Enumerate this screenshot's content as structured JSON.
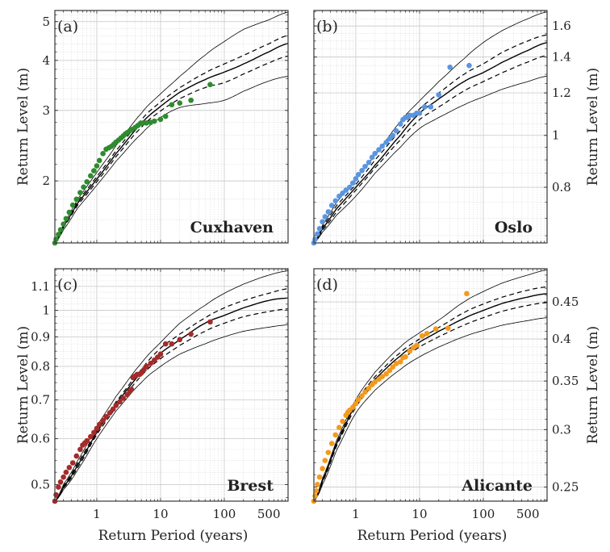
{
  "chart_data": [
    {
      "type": "scatter",
      "panel_label": "(a)",
      "station": "Cuxhaven",
      "xlabel": "",
      "ylabel": "Return Level (m)",
      "ylabel_side": "left",
      "xscale": "log",
      "yscale": "log",
      "xlim": [
        0.22,
        1000
      ],
      "ylim": [
        1.4,
        5.33
      ],
      "xticks": [
        1,
        10,
        100,
        500
      ],
      "xtick_labels_shown": false,
      "yticks": [
        2,
        3,
        4,
        5
      ],
      "ytick_labels": [
        "2",
        "3",
        "4",
        "5"
      ],
      "grid": true,
      "marker_color": "#2e8b2e",
      "curve_T": [
        0.22,
        0.3,
        0.5,
        1,
        2,
        5,
        10,
        20,
        50,
        100,
        200,
        500,
        1000
      ],
      "series": [
        {
          "name": "upper 95% CI",
          "style": "thin-solid",
          "values": [
            1.4,
            1.56,
            1.8,
            2.1,
            2.45,
            2.95,
            3.3,
            3.65,
            4.12,
            4.46,
            4.78,
            5.05,
            5.28
          ]
        },
        {
          "name": "upper 68% CI",
          "style": "dashed",
          "values": [
            1.4,
            1.55,
            1.78,
            2.05,
            2.38,
            2.84,
            3.15,
            3.42,
            3.72,
            3.92,
            4.12,
            4.4,
            4.62
          ]
        },
        {
          "name": "central estimate",
          "style": "solid",
          "values": [
            1.4,
            1.54,
            1.76,
            2.02,
            2.34,
            2.78,
            3.07,
            3.33,
            3.58,
            3.74,
            3.92,
            4.2,
            4.41
          ]
        },
        {
          "name": "lower 68% CI",
          "style": "dashed",
          "values": [
            1.4,
            1.53,
            1.74,
            1.99,
            2.3,
            2.72,
            2.99,
            3.21,
            3.42,
            3.52,
            3.7,
            3.94,
            4.1
          ]
        },
        {
          "name": "lower 95% CI",
          "style": "thin-solid",
          "values": [
            1.4,
            1.51,
            1.71,
            1.95,
            2.24,
            2.62,
            2.88,
            3.05,
            3.12,
            3.18,
            3.35,
            3.55,
            3.65
          ]
        }
      ],
      "points": {
        "x": [
          0.22,
          0.23,
          0.25,
          0.27,
          0.3,
          0.33,
          0.37,
          0.42,
          0.48,
          0.55,
          0.62,
          0.7,
          0.8,
          0.9,
          1.0,
          1.1,
          1.25,
          1.4,
          1.55,
          1.7,
          1.85,
          2.0,
          2.2,
          2.4,
          2.6,
          2.8,
          3.0,
          3.3,
          3.6,
          4.0,
          4.4,
          4.8,
          5.3,
          6.0,
          7.0,
          8.0,
          10.0,
          12.0,
          15.0,
          20.0,
          30.0,
          60.0
        ],
        "y": [
          1.4,
          1.43,
          1.47,
          1.51,
          1.56,
          1.61,
          1.67,
          1.74,
          1.8,
          1.87,
          1.93,
          1.99,
          2.06,
          2.12,
          2.18,
          2.25,
          2.34,
          2.4,
          2.42,
          2.44,
          2.47,
          2.5,
          2.53,
          2.56,
          2.59,
          2.62,
          2.64,
          2.67,
          2.69,
          2.72,
          2.75,
          2.78,
          2.79,
          2.79,
          2.8,
          2.82,
          2.85,
          2.9,
          3.1,
          3.13,
          3.18,
          3.48
        ]
      }
    },
    {
      "type": "scatter",
      "panel_label": "(b)",
      "station": "Oslo",
      "xlabel": "",
      "ylabel": "Return Level (m)",
      "ylabel_side": "right",
      "xscale": "log",
      "yscale": "log",
      "xlim": [
        0.22,
        1000
      ],
      "ylim": [
        0.63,
        1.71
      ],
      "xticks": [
        1,
        10,
        100,
        500
      ],
      "xtick_labels_shown": false,
      "yticks": [
        0.8,
        1,
        1.2,
        1.4,
        1.6
      ],
      "ytick_labels": [
        "0.8",
        "1",
        "1.2",
        "1.4",
        "1.6"
      ],
      "grid": true,
      "marker_color": "#5b95e0",
      "curve_T": [
        0.22,
        0.3,
        0.5,
        1,
        2,
        5,
        10,
        20,
        50,
        100,
        200,
        500,
        1000
      ],
      "series": [
        {
          "name": "upper 95% CI",
          "style": "thin-solid",
          "values": [
            0.63,
            0.68,
            0.75,
            0.83,
            0.92,
            1.06,
            1.16,
            1.26,
            1.39,
            1.49,
            1.57,
            1.65,
            1.7
          ]
        },
        {
          "name": "upper 68% CI",
          "style": "dashed",
          "values": [
            0.63,
            0.675,
            0.74,
            0.81,
            0.9,
            1.02,
            1.12,
            1.2,
            1.3,
            1.36,
            1.43,
            1.5,
            1.54
          ]
        },
        {
          "name": "central estimate",
          "style": "solid",
          "values": [
            0.63,
            0.67,
            0.73,
            0.8,
            0.88,
            1.0,
            1.1,
            1.17,
            1.26,
            1.31,
            1.37,
            1.44,
            1.49
          ]
        },
        {
          "name": "lower 68% CI",
          "style": "dashed",
          "values": [
            0.63,
            0.665,
            0.72,
            0.79,
            0.87,
            0.98,
            1.07,
            1.13,
            1.21,
            1.26,
            1.31,
            1.37,
            1.41
          ]
        },
        {
          "name": "lower 95% CI",
          "style": "thin-solid",
          "values": [
            0.63,
            0.66,
            0.71,
            0.77,
            0.85,
            0.95,
            1.03,
            1.08,
            1.14,
            1.18,
            1.22,
            1.26,
            1.29
          ]
        }
      ],
      "points": {
        "x": [
          0.22,
          0.23,
          0.25,
          0.27,
          0.3,
          0.33,
          0.37,
          0.42,
          0.48,
          0.55,
          0.62,
          0.7,
          0.8,
          0.9,
          1.0,
          1.1,
          1.25,
          1.4,
          1.6,
          1.8,
          2.0,
          2.3,
          2.6,
          3.0,
          3.4,
          3.8,
          4.3,
          5.0,
          5.5,
          6.0,
          6.5,
          7.0,
          8.0,
          9.0,
          10.0,
          12.0,
          15.0,
          20.0,
          30.0,
          60.0
        ],
        "y": [
          0.63,
          0.64,
          0.655,
          0.67,
          0.69,
          0.705,
          0.72,
          0.74,
          0.755,
          0.77,
          0.78,
          0.79,
          0.8,
          0.815,
          0.83,
          0.845,
          0.86,
          0.875,
          0.89,
          0.91,
          0.925,
          0.94,
          0.955,
          0.97,
          0.985,
          1.0,
          1.02,
          1.05,
          1.07,
          1.08,
          1.08,
          1.09,
          1.09,
          1.1,
          1.1,
          1.13,
          1.13,
          1.19,
          1.34,
          1.35
        ]
      }
    },
    {
      "type": "scatter",
      "panel_label": "(c)",
      "station": "Brest",
      "xlabel": "Return Period (years)",
      "ylabel": "Return Level (m)",
      "ylabel_side": "left",
      "xscale": "log",
      "yscale": "log",
      "xlim": [
        0.22,
        1000
      ],
      "ylim": [
        0.468,
        1.18
      ],
      "xticks": [
        1,
        10,
        100,
        500
      ],
      "xtick_labels": [
        "1",
        "10",
        "100",
        "500"
      ],
      "xtick_labels_shown": true,
      "yticks": [
        0.5,
        0.6,
        0.7,
        0.8,
        0.9,
        1,
        1.1
      ],
      "ytick_labels": [
        "0.5",
        "0.6",
        "0.7",
        "0.8",
        "0.9",
        "1",
        "1.1"
      ],
      "grid": true,
      "marker_color": "#a52a2a",
      "curve_T": [
        0.22,
        0.3,
        0.5,
        1,
        2,
        5,
        10,
        20,
        50,
        100,
        200,
        500,
        1000
      ],
      "series": [
        {
          "name": "upper 95% CI",
          "style": "thin-solid",
          "values": [
            0.468,
            0.5,
            0.55,
            0.63,
            0.71,
            0.81,
            0.88,
            0.95,
            1.02,
            1.07,
            1.11,
            1.15,
            1.17
          ]
        },
        {
          "name": "upper 68% CI",
          "style": "dashed",
          "values": [
            0.468,
            0.497,
            0.545,
            0.62,
            0.695,
            0.79,
            0.86,
            0.91,
            0.97,
            1.01,
            1.04,
            1.07,
            1.09
          ]
        },
        {
          "name": "central estimate",
          "style": "solid",
          "values": [
            0.468,
            0.495,
            0.54,
            0.615,
            0.69,
            0.78,
            0.843,
            0.89,
            0.95,
            0.98,
            1.01,
            1.04,
            1.05
          ]
        },
        {
          "name": "lower 68% CI",
          "style": "dashed",
          "values": [
            0.468,
            0.493,
            0.535,
            0.61,
            0.68,
            0.77,
            0.825,
            0.87,
            0.92,
            0.95,
            0.975,
            0.995,
            1.006
          ]
        },
        {
          "name": "lower 95% CI",
          "style": "thin-solid",
          "values": [
            0.468,
            0.49,
            0.53,
            0.6,
            0.67,
            0.75,
            0.8,
            0.84,
            0.875,
            0.9,
            0.92,
            0.935,
            0.944
          ]
        }
      ],
      "points": {
        "x": [
          0.22,
          0.23,
          0.25,
          0.27,
          0.3,
          0.33,
          0.37,
          0.42,
          0.48,
          0.55,
          0.6,
          0.65,
          0.7,
          0.8,
          0.9,
          1.0,
          1.1,
          1.25,
          1.4,
          1.6,
          1.8,
          2.0,
          2.3,
          2.6,
          3.0,
          3.3,
          3.5,
          3.7,
          4.0,
          4.3,
          4.7,
          5.0,
          5.5,
          6.0,
          7.0,
          8.0,
          9.0,
          10.0,
          12.0,
          15.0,
          20.0,
          30.0,
          60.0
        ],
        "y": [
          0.468,
          0.48,
          0.495,
          0.505,
          0.515,
          0.525,
          0.535,
          0.545,
          0.56,
          0.575,
          0.585,
          0.59,
          0.595,
          0.605,
          0.615,
          0.625,
          0.635,
          0.645,
          0.655,
          0.665,
          0.675,
          0.685,
          0.695,
          0.705,
          0.715,
          0.725,
          0.73,
          0.765,
          0.77,
          0.775,
          0.775,
          0.78,
          0.79,
          0.8,
          0.81,
          0.82,
          0.83,
          0.84,
          0.875,
          0.875,
          0.89,
          0.91,
          0.955
        ]
      }
    },
    {
      "type": "scatter",
      "panel_label": "(d)",
      "station": "Alicante",
      "xlabel": "Return Period (years)",
      "ylabel": "Return Level (m)",
      "ylabel_side": "right",
      "xscale": "log",
      "yscale": "log",
      "xlim": [
        0.22,
        1000
      ],
      "ylim": [
        0.239,
        0.5
      ],
      "xticks": [
        1,
        10,
        100,
        500
      ],
      "xtick_labels": [
        "1",
        "10",
        "100",
        "500"
      ],
      "xtick_labels_shown": true,
      "yticks": [
        0.25,
        0.3,
        0.35,
        0.4,
        0.45
      ],
      "ytick_labels": [
        "0.25",
        "0.3",
        "0.35",
        "0.4",
        "0.45"
      ],
      "grid": true,
      "marker_color": "#f39a1e",
      "curve_T": [
        0.22,
        0.3,
        0.5,
        1,
        2,
        5,
        10,
        20,
        50,
        100,
        200,
        500,
        1000
      ],
      "series": [
        {
          "name": "upper 95% CI",
          "style": "thin-solid",
          "values": [
            0.239,
            0.257,
            0.29,
            0.33,
            0.36,
            0.39,
            0.408,
            0.425,
            0.45,
            0.465,
            0.478,
            0.49,
            0.498
          ]
        },
        {
          "name": "upper 68% CI",
          "style": "dashed",
          "values": [
            0.239,
            0.256,
            0.288,
            0.327,
            0.355,
            0.383,
            0.4,
            0.415,
            0.435,
            0.447,
            0.457,
            0.467,
            0.472
          ]
        },
        {
          "name": "central estimate",
          "style": "solid",
          "values": [
            0.239,
            0.255,
            0.287,
            0.325,
            0.352,
            0.379,
            0.396,
            0.41,
            0.427,
            0.438,
            0.448,
            0.457,
            0.462
          ]
        },
        {
          "name": "lower 68% CI",
          "style": "dashed",
          "values": [
            0.239,
            0.254,
            0.285,
            0.322,
            0.348,
            0.373,
            0.39,
            0.403,
            0.418,
            0.428,
            0.437,
            0.445,
            0.449
          ]
        },
        {
          "name": "lower 95% CI",
          "style": "thin-solid",
          "values": [
            0.239,
            0.252,
            0.281,
            0.316,
            0.34,
            0.363,
            0.378,
            0.39,
            0.403,
            0.411,
            0.418,
            0.424,
            0.428
          ]
        }
      ],
      "points": {
        "x": [
          0.22,
          0.23,
          0.24,
          0.25,
          0.27,
          0.3,
          0.33,
          0.37,
          0.42,
          0.48,
          0.55,
          0.62,
          0.7,
          0.75,
          0.8,
          0.9,
          1.0,
          1.1,
          1.25,
          1.4,
          1.6,
          1.8,
          2.0,
          2.3,
          2.6,
          3.0,
          3.4,
          3.8,
          4.3,
          5.0,
          5.5,
          6.0,
          7.0,
          8.0,
          9.0,
          11.0,
          13.0,
          18.0,
          28.0,
          55.0
        ],
        "y": [
          0.239,
          0.243,
          0.247,
          0.252,
          0.258,
          0.265,
          0.272,
          0.279,
          0.287,
          0.295,
          0.302,
          0.308,
          0.314,
          0.317,
          0.319,
          0.322,
          0.326,
          0.33,
          0.334,
          0.338,
          0.342,
          0.346,
          0.349,
          0.352,
          0.355,
          0.358,
          0.362,
          0.366,
          0.37,
          0.372,
          0.377,
          0.378,
          0.385,
          0.389,
          0.392,
          0.404,
          0.407,
          0.413,
          0.414,
          0.462
        ]
      }
    }
  ]
}
